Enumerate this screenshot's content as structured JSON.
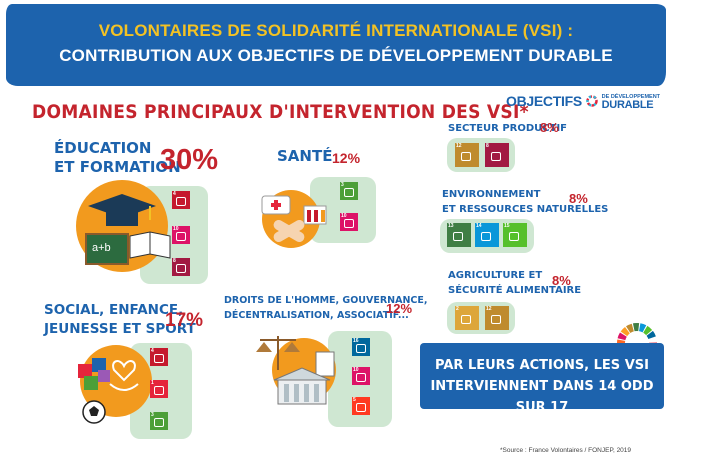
{
  "header": {
    "line1": "VOLONTAIRES DE SOLIDARITÉ INTERNATIONALE (VSI) :",
    "line2": "CONTRIBUTION AUX OBJECTIFS DE DÉVELOPPEMENT DURABLE"
  },
  "section_title": "DOMAINES PRINCIPAUX D'INTERVENTION DES VSI*",
  "odd_logo": {
    "word1": "OBJECTIFS",
    "small": "DE DÉVELOPPEMENT",
    "word2": "DURABLE"
  },
  "domains": {
    "education": {
      "line1": "ÉDUCATION",
      "line2": "ET FORMATION",
      "percent": "30%"
    },
    "sante": {
      "label": "SANTÉ",
      "percent": "12%"
    },
    "social": {
      "line1": "SOCIAL, ENFANCE,",
      "line2": "JEUNESSE ET SPORT",
      "percent": "17%"
    },
    "droits": {
      "line1": "DROITS DE L'HOMME, GOUVERNANCE,",
      "line2": "DÉCENTRALISATION, ASSOCIATIF...",
      "percent": "12%"
    },
    "productif": {
      "label": "SECTEUR PRODUCTIF",
      "percent": "8%"
    },
    "environnement": {
      "line1": "ENVIRONNEMENT",
      "line2": "ET RESSOURCES NATURELLES",
      "percent": "8%"
    },
    "agriculture": {
      "line1": "AGRICULTURE ET",
      "line2": "SÉCURITÉ ALIMENTAIRE",
      "percent": "8%"
    }
  },
  "illustrations": {
    "abc_board": "a+b"
  },
  "odd_tiles": {
    "education": [
      "4",
      "10",
      "8"
    ],
    "sante": [
      "3",
      "10"
    ],
    "social": [
      "4",
      "1",
      "3"
    ],
    "droits": [
      "16",
      "10",
      "5"
    ],
    "productif": [
      "12",
      "8"
    ],
    "environnement": [
      "13",
      "14",
      "15"
    ],
    "agriculture": [
      "2",
      "12"
    ]
  },
  "conclusion": {
    "line1": "PAR LEURS ACTIONS, LES VSI",
    "line2": "INTERVIENNENT DANS 14 ODD SUR 17"
  },
  "source": "*Source : France Volontaires / FONJEP, 2019",
  "colors": {
    "banner": "#1d63ad",
    "accent_yellow": "#f3c224",
    "red": "#c4242d",
    "panel": "#cfe7d2",
    "orange": "#f29a1e"
  }
}
